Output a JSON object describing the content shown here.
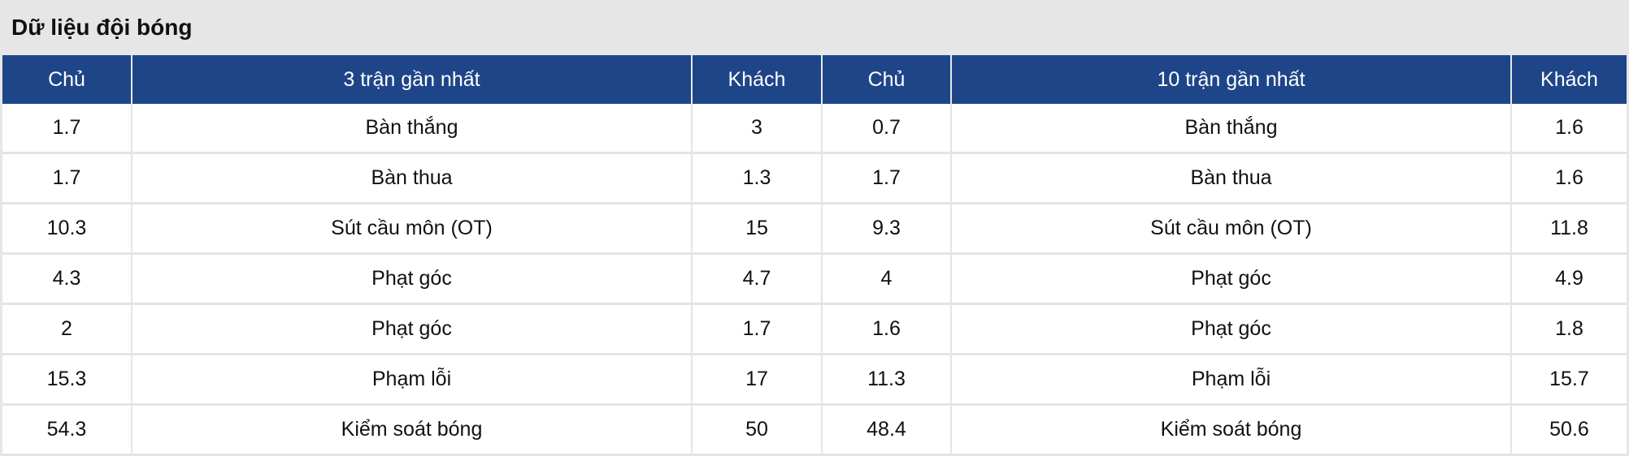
{
  "title": "Dữ liệu đội bóng",
  "colors": {
    "header_bg": "#1f4589",
    "title_bg": "#e6e6e6"
  },
  "headers": [
    "Chủ",
    "3 trận gần nhất",
    "Khách",
    "Chủ",
    "10 trận gần nhất",
    "Khách"
  ],
  "rows": [
    [
      "1.7",
      "Bàn thắng",
      "3",
      "0.7",
      "Bàn thắng",
      "1.6"
    ],
    [
      "1.7",
      "Bàn thua",
      "1.3",
      "1.7",
      "Bàn thua",
      "1.6"
    ],
    [
      "10.3",
      "Sút cầu môn (OT)",
      "15",
      "9.3",
      "Sút cầu môn (OT)",
      "11.8"
    ],
    [
      "4.3",
      "Phạt góc",
      "4.7",
      "4",
      "Phạt góc",
      "4.9"
    ],
    [
      "2",
      "Phạt góc",
      "1.7",
      "1.6",
      "Phạt góc",
      "1.8"
    ],
    [
      "15.3",
      "Phạm lỗi",
      "17",
      "11.3",
      "Phạm lỗi",
      "15.7"
    ],
    [
      "54.3",
      "Kiểm soát bóng",
      "50",
      "48.4",
      "Kiểm soát bóng",
      "50.6"
    ]
  ]
}
